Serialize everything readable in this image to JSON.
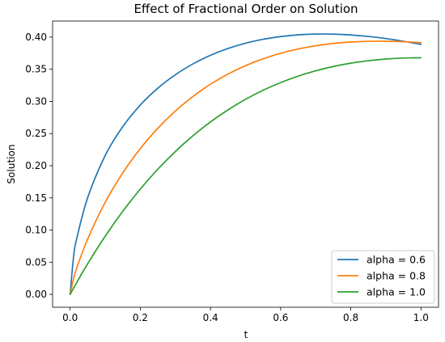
{
  "chart_data": {
    "type": "line",
    "title": "Effect of Fractional Order on Solution",
    "xlabel": "t",
    "ylabel": "Solution",
    "xlim": [
      -0.05,
      1.05
    ],
    "ylim": [
      -0.02,
      0.425
    ],
    "xticks": [
      0.0,
      0.2,
      0.4,
      0.6,
      0.8,
      1.0
    ],
    "xtick_labels": [
      "0.0",
      "0.2",
      "0.4",
      "0.6",
      "0.8",
      "1.0"
    ],
    "yticks": [
      0.0,
      0.05,
      0.1,
      0.15,
      0.2,
      0.25,
      0.3,
      0.35,
      0.4
    ],
    "ytick_labels": [
      "0.00",
      "0.05",
      "0.10",
      "0.15",
      "0.20",
      "0.25",
      "0.30",
      "0.35",
      "0.40"
    ],
    "grid": false,
    "legend_position": "lower-right",
    "x": [
      0.0,
      0.01,
      0.02,
      0.05,
      0.1,
      0.15,
      0.2,
      0.25,
      0.3,
      0.35,
      0.4,
      0.45,
      0.5,
      0.55,
      0.6,
      0.65,
      0.7,
      0.75,
      0.8,
      0.85,
      0.9,
      0.95,
      1.0
    ],
    "series": [
      {
        "name": "alpha = 0.6",
        "color": "#1f77b4",
        "values": [
          0.0,
          0.0596,
          0.0895,
          0.1504,
          0.216,
          0.2608,
          0.2944,
          0.3206,
          0.3415,
          0.3583,
          0.3717,
          0.3823,
          0.3905,
          0.3966,
          0.4008,
          0.4035,
          0.4047,
          0.4046,
          0.4033,
          0.401,
          0.3977,
          0.3935,
          0.3887
        ]
      },
      {
        "name": "alpha = 0.8",
        "color": "#ff7f0e",
        "values": [
          0.0,
          0.0249,
          0.0427,
          0.086,
          0.1432,
          0.1888,
          0.2266,
          0.2583,
          0.2851,
          0.3077,
          0.3267,
          0.3425,
          0.3556,
          0.3663,
          0.3748,
          0.3815,
          0.3865,
          0.3901,
          0.3923,
          0.3935,
          0.3936,
          0.3929,
          0.3913
        ]
      },
      {
        "name": "alpha = 1.0",
        "color": "#2ca02c",
        "values": [
          0.0,
          0.0099,
          0.0196,
          0.0476,
          0.0905,
          0.1291,
          0.1637,
          0.1947,
          0.2222,
          0.2466,
          0.2681,
          0.2869,
          0.3033,
          0.3174,
          0.3293,
          0.3393,
          0.3476,
          0.3543,
          0.3595,
          0.3633,
          0.3659,
          0.3674,
          0.3679
        ]
      }
    ]
  }
}
